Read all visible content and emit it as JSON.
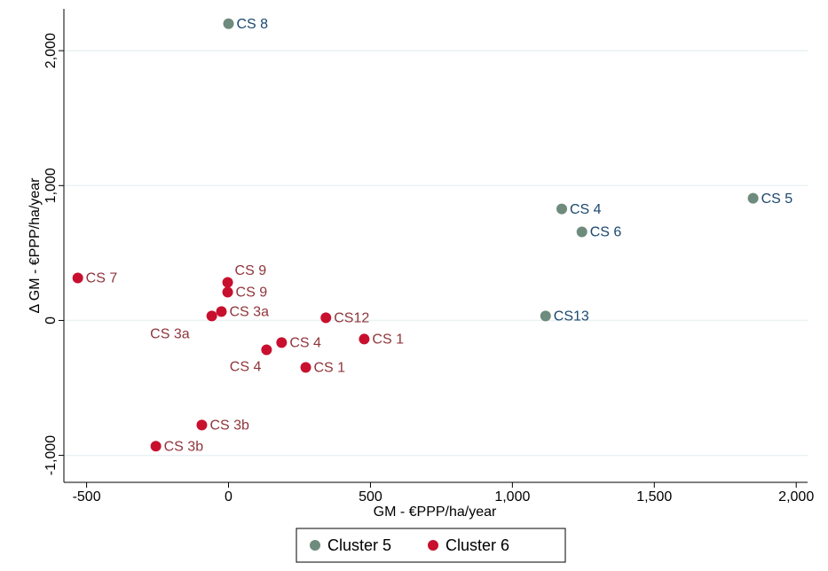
{
  "chart_data": {
    "type": "scatter",
    "x_label": "GM - €PPP/ha/year",
    "y_label": "Δ GM - €PPP/ha/year",
    "xlim": [
      -580,
      2040
    ],
    "ylim": [
      -1200,
      2310
    ],
    "xticks": [
      -500,
      0,
      500,
      {
        "value": 1000,
        "label": "1,000"
      },
      {
        "value": 1500,
        "label": "1,500"
      },
      {
        "value": 2000,
        "label": "2,000"
      }
    ],
    "yticks": [
      {
        "value": -1000,
        "label": "-1,000"
      },
      0,
      {
        "value": 1000,
        "label": "1,000"
      },
      {
        "value": 2000,
        "label": "2,000"
      }
    ],
    "grid": true,
    "legend": "bottom",
    "series": [
      {
        "name": "Cluster 5",
        "color": "#6e8b7d",
        "label_color": "#1a476f",
        "x": [
          0,
          1848,
          1174,
          1245,
          1117
        ],
        "values": [
          2200,
          906,
          827,
          657,
          33
        ],
        "point_labels": [
          "CS 8",
          "CS 5",
          "CS 4",
          "CS 6",
          "CS13"
        ]
      },
      {
        "name": "Cluster 6",
        "color": "#c8102e",
        "label_color": "#90353b",
        "x": [
          -531,
          -3,
          -3,
          -25,
          -59,
          343,
          478,
          187,
          134,
          272,
          -94,
          -256
        ],
        "values": [
          315,
          282,
          210,
          66,
          33,
          20,
          -138,
          -164,
          -217,
          -348,
          -775,
          -932
        ],
        "point_labels": [
          "CS 7",
          "CS 9",
          "CS 9",
          "CS 3a",
          "CS 3a",
          "CS12",
          "CS 1",
          "CS 4",
          "CS 4",
          "CS 1",
          "CS 3b",
          "CS 3b"
        ]
      }
    ]
  }
}
